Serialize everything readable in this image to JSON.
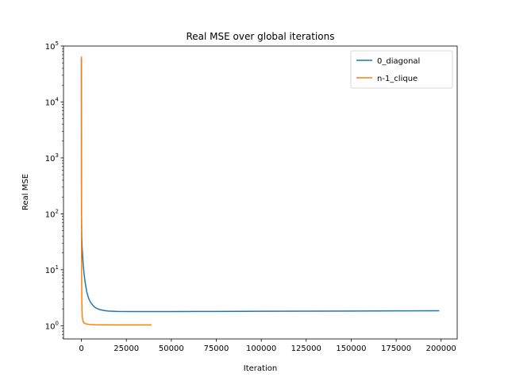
{
  "chart_data": {
    "type": "line",
    "title": "Real MSE over global iterations",
    "xlabel": "Iteration",
    "ylabel": "Real MSE",
    "yscale": "log",
    "xlim": [
      -9950,
      208950
    ],
    "ylim": [
      0.58,
      100000
    ],
    "xticks": [
      0,
      25000,
      50000,
      75000,
      100000,
      125000,
      150000,
      175000,
      200000
    ],
    "yticks": [
      1,
      10,
      100,
      1000,
      10000,
      100000
    ],
    "ytick_labels": [
      {
        "base": "10",
        "exp": "0"
      },
      {
        "base": "10",
        "exp": "1"
      },
      {
        "base": "10",
        "exp": "2"
      },
      {
        "base": "10",
        "exp": "3"
      },
      {
        "base": "10",
        "exp": "4"
      },
      {
        "base": "10",
        "exp": "5"
      }
    ],
    "grid": false,
    "legend_position": "top-right",
    "series": [
      {
        "name": "0_diagonal",
        "color": "#1f77b4",
        "x": [
          0,
          50,
          100,
          200,
          400,
          700,
          1000,
          1500,
          2000,
          3000,
          4000,
          5000,
          6000,
          7000,
          8000,
          10000,
          12500,
          15000,
          20000,
          30000,
          40000,
          50000,
          75000,
          100000,
          125000,
          150000,
          175000,
          199000
        ],
        "y": [
          60000,
          300,
          90,
          40,
          25,
          18,
          12.5,
          8.5,
          6.2,
          4.0,
          3.1,
          2.65,
          2.4,
          2.2,
          2.08,
          1.95,
          1.87,
          1.83,
          1.8,
          1.79,
          1.79,
          1.79,
          1.8,
          1.81,
          1.82,
          1.83,
          1.84,
          1.85
        ]
      },
      {
        "name": "n-1_clique",
        "color": "#ff7f0e",
        "x": [
          0,
          20,
          50,
          100,
          200,
          300,
          500,
          800,
          1000,
          1500,
          2000,
          3000,
          5000,
          8000,
          12000,
          20000,
          30000,
          39000
        ],
        "y": [
          65000,
          5000,
          300,
          20,
          4.0,
          2.0,
          1.45,
          1.25,
          1.18,
          1.12,
          1.09,
          1.07,
          1.05,
          1.04,
          1.035,
          1.03,
          1.03,
          1.03
        ]
      }
    ]
  }
}
